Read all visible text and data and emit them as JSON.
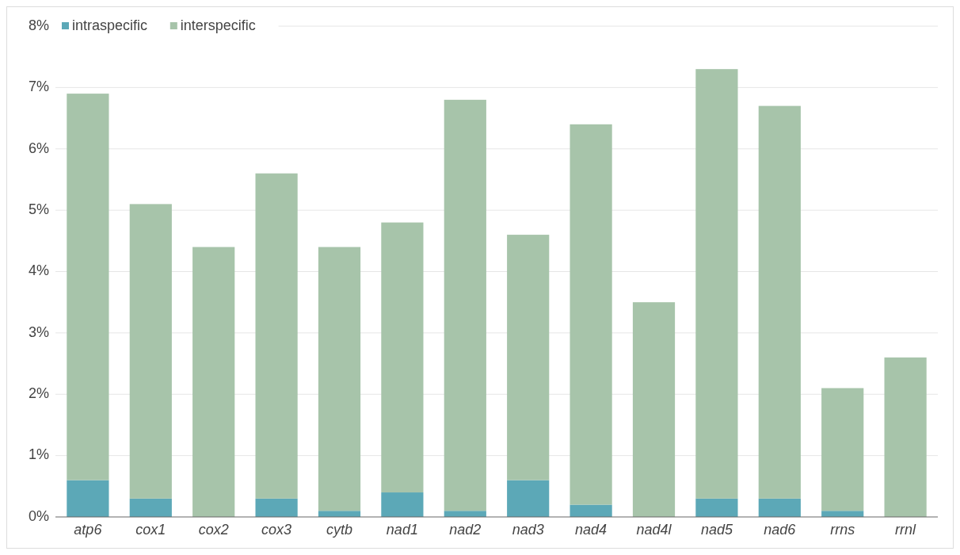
{
  "chart_data": {
    "type": "bar",
    "categories": [
      "atp6",
      "cox1",
      "cox2",
      "cox3",
      "cytb",
      "nad1",
      "nad2",
      "nad3",
      "nad4",
      "nad4l",
      "nad5",
      "nad6",
      "rrns",
      "rrnl"
    ],
    "series": [
      {
        "name": "intraspecific",
        "color": "#5ca8b7",
        "values": [
          0.6,
          0.3,
          0,
          0.3,
          0.1,
          0.4,
          0.1,
          0.6,
          0.2,
          0,
          0.3,
          0.3,
          0.1,
          0
        ]
      },
      {
        "name": "interspecific",
        "color": "#a7c4aa",
        "values": [
          6.3,
          4.8,
          4.4,
          5.3,
          4.3,
          4.4,
          6.7,
          4.0,
          6.2,
          3.5,
          7.0,
          6.4,
          2.0,
          2.6
        ]
      }
    ],
    "ylim": [
      0,
      8
    ],
    "yticks": [
      {
        "value": 0,
        "label": "0%"
      },
      {
        "value": 1,
        "label": "1%"
      },
      {
        "value": 2,
        "label": "2%"
      },
      {
        "value": 3,
        "label": "3%"
      },
      {
        "value": 4,
        "label": "4%"
      },
      {
        "value": 5,
        "label": "5%"
      },
      {
        "value": 6,
        "label": "6%"
      },
      {
        "value": 7,
        "label": "7%"
      },
      {
        "value": 8,
        "label": "8%"
      }
    ],
    "grid": "y",
    "legend": "top left",
    "stacked": true
  }
}
